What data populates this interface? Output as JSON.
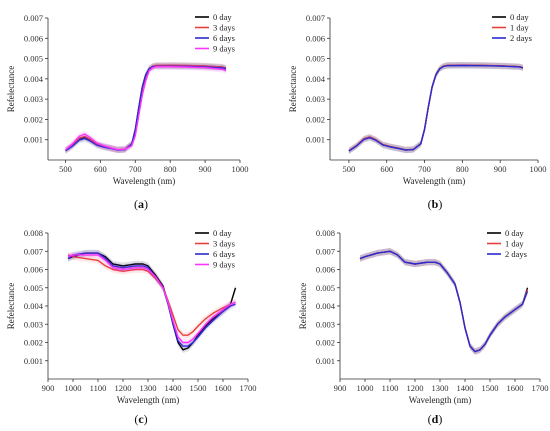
{
  "chart_data": [
    {
      "id": "a",
      "type": "line",
      "caption_open": "(",
      "caption_letter": "a",
      "caption_close": ")",
      "xlabel": "Wavelength (nm)",
      "ylabel": "Refelectance",
      "xlim": [
        450,
        1000
      ],
      "ylim": [
        0.0,
        0.007
      ],
      "xticks": [
        500,
        600,
        700,
        800,
        900,
        1000
      ],
      "yticks": [
        0.001,
        0.002,
        0.003,
        0.004,
        0.005,
        0.006,
        0.007
      ],
      "legend_position": "top-right",
      "series": [
        {
          "name": "0 day",
          "color": "#000000",
          "x": [
            500,
            520,
            540,
            555,
            570,
            590,
            610,
            630,
            650,
            670,
            690,
            700,
            710,
            720,
            730,
            740,
            750,
            760,
            800,
            850,
            900,
            950,
            960
          ],
          "y": [
            0.00047,
            0.0007,
            0.00102,
            0.0011,
            0.00098,
            0.00075,
            0.00065,
            0.00058,
            0.0005,
            0.00052,
            0.0008,
            0.0015,
            0.0026,
            0.0036,
            0.0042,
            0.0045,
            0.00462,
            0.00465,
            0.00466,
            0.00465,
            0.00463,
            0.00458,
            0.00453
          ]
        },
        {
          "name": "3 days",
          "color": "#e8403a",
          "x": [
            500,
            520,
            540,
            555,
            570,
            590,
            610,
            630,
            650,
            670,
            690,
            700,
            710,
            720,
            730,
            740,
            750,
            760,
            800,
            850,
            900,
            950,
            960
          ],
          "y": [
            0.0005,
            0.00075,
            0.00108,
            0.00116,
            0.00102,
            0.00078,
            0.00067,
            0.00059,
            0.00051,
            0.00053,
            0.0008,
            0.0014,
            0.0025,
            0.0035,
            0.0041,
            0.0045,
            0.00463,
            0.00467,
            0.00467,
            0.00466,
            0.00464,
            0.00458,
            0.00452
          ]
        },
        {
          "name": "6 days",
          "color": "#2b2bd4",
          "x": [
            500,
            520,
            540,
            555,
            570,
            590,
            610,
            630,
            650,
            670,
            690,
            700,
            710,
            720,
            730,
            740,
            750,
            760,
            800,
            850,
            900,
            950,
            960
          ],
          "y": [
            0.00045,
            0.00068,
            0.00098,
            0.00106,
            0.00094,
            0.00073,
            0.00063,
            0.00057,
            0.00049,
            0.00051,
            0.0008,
            0.0015,
            0.0026,
            0.0036,
            0.0042,
            0.0045,
            0.0046,
            0.00462,
            0.00462,
            0.00461,
            0.00459,
            0.00454,
            0.00449
          ]
        },
        {
          "name": "9 days",
          "color": "#ff33ff",
          "x": [
            500,
            520,
            540,
            555,
            570,
            590,
            610,
            630,
            650,
            670,
            690,
            700,
            710,
            720,
            730,
            740,
            750,
            760,
            800,
            850,
            900,
            950,
            960
          ],
          "y": [
            0.0005,
            0.0008,
            0.00118,
            0.00128,
            0.00112,
            0.00084,
            0.0007,
            0.0006,
            0.00051,
            0.00053,
            0.0007,
            0.0012,
            0.0022,
            0.0032,
            0.0039,
            0.0044,
            0.00455,
            0.0046,
            0.0046,
            0.00458,
            0.00455,
            0.00447,
            0.0044
          ]
        }
      ]
    },
    {
      "id": "b",
      "type": "line",
      "caption_open": "(",
      "caption_letter": "b",
      "caption_close": ")",
      "xlabel": "Wavelength (nm)",
      "ylabel": "Refelectance",
      "xlim": [
        450,
        1000
      ],
      "ylim": [
        0.0,
        0.007
      ],
      "xticks": [
        500,
        600,
        700,
        800,
        900,
        1000
      ],
      "yticks": [
        0.001,
        0.002,
        0.003,
        0.004,
        0.005,
        0.006,
        0.007
      ],
      "legend_position": "top-right",
      "series": [
        {
          "name": "0 day",
          "color": "#000000",
          "x": [
            500,
            520,
            540,
            555,
            570,
            590,
            610,
            630,
            650,
            670,
            690,
            700,
            710,
            720,
            730,
            740,
            750,
            760,
            800,
            850,
            900,
            950,
            960
          ],
          "y": [
            0.00045,
            0.0007,
            0.00103,
            0.00112,
            0.001,
            0.00075,
            0.00065,
            0.00058,
            0.0005,
            0.00052,
            0.0008,
            0.0015,
            0.0026,
            0.0036,
            0.0042,
            0.0045,
            0.00462,
            0.00466,
            0.00467,
            0.00466,
            0.00464,
            0.0046,
            0.00455
          ]
        },
        {
          "name": "1 day",
          "color": "#e8403a",
          "x": [
            500,
            520,
            540,
            555,
            570,
            590,
            610,
            630,
            650,
            670,
            690,
            700,
            710,
            720,
            730,
            740,
            750,
            760,
            800,
            850,
            900,
            950,
            960
          ],
          "y": [
            0.00046,
            0.00071,
            0.00105,
            0.00114,
            0.00101,
            0.00076,
            0.00066,
            0.00058,
            0.0005,
            0.00052,
            0.0008,
            0.0015,
            0.0026,
            0.0036,
            0.0042,
            0.0045,
            0.00463,
            0.00467,
            0.00468,
            0.00467,
            0.00465,
            0.0046,
            0.00455
          ]
        },
        {
          "name": "2 days",
          "color": "#2b2bd4",
          "x": [
            500,
            520,
            540,
            555,
            570,
            590,
            610,
            630,
            650,
            670,
            690,
            700,
            710,
            720,
            730,
            740,
            750,
            760,
            800,
            850,
            900,
            950,
            960
          ],
          "y": [
            0.00044,
            0.00069,
            0.00101,
            0.0011,
            0.00098,
            0.00074,
            0.00064,
            0.00057,
            0.00049,
            0.00051,
            0.0008,
            0.0015,
            0.0026,
            0.0036,
            0.0042,
            0.0045,
            0.00461,
            0.00465,
            0.00466,
            0.00465,
            0.00463,
            0.00459,
            0.00454
          ]
        }
      ]
    },
    {
      "id": "c",
      "type": "line",
      "caption_open": "(",
      "caption_letter": "c",
      "caption_close": ")",
      "xlabel": "Wavelength (nm)",
      "ylabel": "Refelectance",
      "xlim": [
        900,
        1700
      ],
      "ylim": [
        0.0,
        0.008
      ],
      "xticks": [
        900,
        1000,
        1100,
        1200,
        1300,
        1400,
        1500,
        1600,
        1700
      ],
      "yticks": [
        0.001,
        0.002,
        0.003,
        0.004,
        0.005,
        0.006,
        0.007,
        0.008
      ],
      "legend_position": "top-right",
      "series": [
        {
          "name": "0 day",
          "color": "#000000",
          "x": [
            980,
            1000,
            1050,
            1100,
            1130,
            1160,
            1200,
            1250,
            1280,
            1300,
            1330,
            1360,
            1380,
            1400,
            1420,
            1440,
            1460,
            1480,
            1500,
            1530,
            1560,
            1600,
            1630,
            1650
          ],
          "y": [
            0.0066,
            0.0067,
            0.0069,
            0.0069,
            0.0067,
            0.0063,
            0.0062,
            0.0063,
            0.0063,
            0.0062,
            0.0057,
            0.0051,
            0.0042,
            0.003,
            0.002,
            0.0016,
            0.0017,
            0.002,
            0.0024,
            0.0029,
            0.0033,
            0.0037,
            0.0041,
            0.005
          ]
        },
        {
          "name": "3 days",
          "color": "#e8403a",
          "x": [
            980,
            1000,
            1050,
            1100,
            1130,
            1160,
            1200,
            1250,
            1280,
            1300,
            1330,
            1360,
            1380,
            1400,
            1420,
            1440,
            1460,
            1480,
            1500,
            1530,
            1560,
            1600,
            1630,
            1650
          ],
          "y": [
            0.0068,
            0.0067,
            0.0066,
            0.0065,
            0.0062,
            0.006,
            0.0059,
            0.006,
            0.006,
            0.0059,
            0.0055,
            0.005,
            0.0043,
            0.0035,
            0.0027,
            0.0024,
            0.0024,
            0.0026,
            0.0029,
            0.0033,
            0.0036,
            0.0039,
            0.0041,
            0.0042
          ]
        },
        {
          "name": "6 days",
          "color": "#2b2bd4",
          "x": [
            980,
            1000,
            1050,
            1100,
            1130,
            1160,
            1200,
            1250,
            1280,
            1300,
            1330,
            1360,
            1380,
            1400,
            1420,
            1440,
            1460,
            1480,
            1500,
            1530,
            1560,
            1600,
            1630,
            1650
          ],
          "y": [
            0.0066,
            0.0068,
            0.0069,
            0.0069,
            0.0066,
            0.0062,
            0.0061,
            0.0062,
            0.0062,
            0.0061,
            0.0056,
            0.005,
            0.0041,
            0.003,
            0.0021,
            0.0018,
            0.0018,
            0.002,
            0.0023,
            0.0028,
            0.0032,
            0.0037,
            0.004,
            0.0041
          ]
        },
        {
          "name": "9 days",
          "color": "#ff33ff",
          "x": [
            980,
            1000,
            1050,
            1100,
            1130,
            1160,
            1200,
            1250,
            1280,
            1300,
            1330,
            1360,
            1380,
            1400,
            1420,
            1440,
            1460,
            1480,
            1500,
            1530,
            1560,
            1600,
            1630,
            1650
          ],
          "y": [
            0.0067,
            0.0068,
            0.0068,
            0.0068,
            0.0065,
            0.0061,
            0.006,
            0.0061,
            0.0061,
            0.006,
            0.0056,
            0.005,
            0.0042,
            0.0032,
            0.0023,
            0.002,
            0.002,
            0.0022,
            0.0025,
            0.003,
            0.0034,
            0.0038,
            0.0041,
            0.0042
          ]
        }
      ]
    },
    {
      "id": "d",
      "type": "line",
      "caption_open": "(",
      "caption_letter": "d",
      "caption_close": ")",
      "xlabel": "Wavelength (nm)",
      "ylabel": "Refelectance",
      "xlim": [
        900,
        1700
      ],
      "ylim": [
        0.0,
        0.008
      ],
      "xticks": [
        900,
        1000,
        1100,
        1200,
        1300,
        1400,
        1500,
        1600,
        1700
      ],
      "yticks": [
        0.001,
        0.002,
        0.003,
        0.004,
        0.005,
        0.006,
        0.007,
        0.008
      ],
      "legend_position": "top-right",
      "series": [
        {
          "name": "0 day",
          "color": "#000000",
          "x": [
            980,
            1000,
            1050,
            1100,
            1130,
            1160,
            1200,
            1250,
            1280,
            1300,
            1330,
            1360,
            1380,
            1400,
            1420,
            1440,
            1460,
            1480,
            1500,
            1530,
            1560,
            1600,
            1630,
            1650
          ],
          "y": [
            0.0066,
            0.0067,
            0.0069,
            0.007,
            0.0068,
            0.0064,
            0.0063,
            0.0064,
            0.0064,
            0.0063,
            0.0058,
            0.0052,
            0.0042,
            0.0028,
            0.0018,
            0.0015,
            0.0016,
            0.0019,
            0.0024,
            0.003,
            0.0034,
            0.0038,
            0.0041,
            0.005
          ]
        },
        {
          "name": "1 day",
          "color": "#e8403a",
          "x": [
            980,
            1000,
            1050,
            1100,
            1130,
            1160,
            1200,
            1250,
            1280,
            1300,
            1330,
            1360,
            1380,
            1400,
            1420,
            1440,
            1460,
            1480,
            1500,
            1530,
            1560,
            1600,
            1630,
            1650
          ],
          "y": [
            0.0066,
            0.0067,
            0.0069,
            0.007,
            0.0068,
            0.0064,
            0.0063,
            0.0064,
            0.0064,
            0.0063,
            0.0058,
            0.0052,
            0.0042,
            0.0028,
            0.0018,
            0.0015,
            0.0016,
            0.0019,
            0.0024,
            0.003,
            0.0034,
            0.0038,
            0.0041,
            0.0049
          ]
        },
        {
          "name": "2 days",
          "color": "#2b2bd4",
          "x": [
            980,
            1000,
            1050,
            1100,
            1130,
            1160,
            1200,
            1250,
            1280,
            1300,
            1330,
            1360,
            1380,
            1400,
            1420,
            1440,
            1460,
            1480,
            1500,
            1530,
            1560,
            1600,
            1630,
            1650
          ],
          "y": [
            0.0066,
            0.0067,
            0.0069,
            0.007,
            0.0068,
            0.0064,
            0.0063,
            0.0064,
            0.0064,
            0.0063,
            0.0058,
            0.0052,
            0.0042,
            0.0028,
            0.0018,
            0.0015,
            0.0016,
            0.0019,
            0.0024,
            0.003,
            0.0034,
            0.0038,
            0.0041,
            0.0048
          ]
        }
      ]
    }
  ]
}
